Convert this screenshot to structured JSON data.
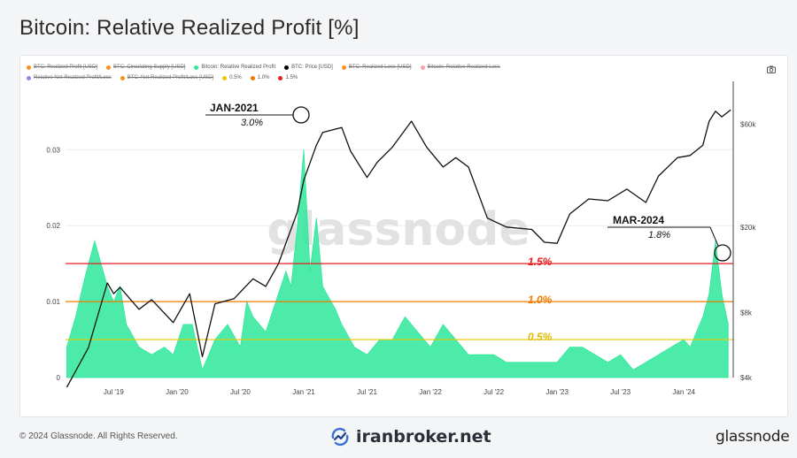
{
  "page": {
    "title": "Bitcoin: Relative Realized Profit [%]",
    "copyright": "© 2024 Glassnode. All Rights Reserved.",
    "center_brand": "iranbroker.net",
    "right_brand": "glassnode",
    "watermark": "glassnode",
    "camera_icon": "camera-icon"
  },
  "legend": {
    "row1": [
      {
        "label": "BTC: Realized Profit [USD]",
        "color": "#f7931a",
        "hidden": true
      },
      {
        "label": "BTC: Circulating Supply [USD]",
        "color": "#f7931a",
        "hidden": true
      },
      {
        "label": "Bitcoin: Relative Realized Profit",
        "color": "#2ee89a",
        "hidden": false
      },
      {
        "label": "BTC: Price [USD]",
        "color": "#000000",
        "hidden": false
      },
      {
        "label": "BTC: Realized Loss [USD]",
        "color": "#f7931a",
        "hidden": true
      },
      {
        "label": "Bitcoin: Relative Realized Loss",
        "color": "#f4a3b0",
        "hidden": true
      }
    ],
    "row2": [
      {
        "label": "Relative Net Realized Profit/Loss",
        "color": "#8c8cf0",
        "hidden": true
      },
      {
        "label": "BTC: Net Realized Profit/Loss [USD]",
        "color": "#f7931a",
        "hidden": true
      },
      {
        "label": "0.5%",
        "color": "#f0c800",
        "hidden": false
      },
      {
        "label": "1.0%",
        "color": "#f07a00",
        "hidden": false
      },
      {
        "label": "1.5%",
        "color": "#e61e1e",
        "hidden": false
      }
    ]
  },
  "annotations": {
    "jan2021_label": "JAN-2021",
    "jan2021_value": "3.0%",
    "mar2024_label": "MAR-2024",
    "mar2024_value": "1.8%",
    "line15": "1.5%",
    "line10": "1.0%",
    "line05": "0.5%"
  },
  "colors": {
    "area": "#2ee89a",
    "price": "#111111",
    "line15": "#e61e1e",
    "line10": "#f07a00",
    "line05": "#e8c800"
  },
  "chart_data": {
    "type": "area",
    "title": "Bitcoin: Relative Realized Profit [%]",
    "x_ticks": [
      "Jul '19",
      "Jan '20",
      "Jul '20",
      "Jan '21",
      "Jul '21",
      "Jan '22",
      "Jul '22",
      "Jan '23",
      "Jul '23",
      "Jan '24"
    ],
    "x_range": [
      2019.12,
      2024.39
    ],
    "y_left": {
      "ticks": [
        "0",
        "0.01",
        "0.02",
        "0.03"
      ],
      "tick_values": [
        0,
        0.01,
        0.02,
        0.03
      ],
      "range": [
        0,
        0.039
      ]
    },
    "y_right": {
      "ticks": [
        "$4k",
        "$8k",
        "$20k",
        "$60k"
      ],
      "tick_values": [
        4000,
        8000,
        20000,
        60000
      ],
      "scale": "log",
      "range": [
        4000,
        95000
      ]
    },
    "reference_lines": [
      {
        "name": "1.5%",
        "value": 0.015
      },
      {
        "name": "1.0%",
        "value": 0.01
      },
      {
        "name": "0.5%",
        "value": 0.005
      }
    ],
    "series": [
      {
        "name": "Bitcoin: Relative Realized Profit",
        "axis": "left",
        "x": [
          2019.13,
          2019.2,
          2019.27,
          2019.35,
          2019.4,
          2019.45,
          2019.5,
          2019.55,
          2019.6,
          2019.7,
          2019.8,
          2019.9,
          2019.97,
          2020.05,
          2020.12,
          2020.2,
          2020.3,
          2020.4,
          2020.5,
          2020.55,
          2020.6,
          2020.7,
          2020.8,
          2020.86,
          2020.9,
          2020.95,
          2021.0,
          2021.05,
          2021.1,
          2021.15,
          2021.25,
          2021.3,
          2021.4,
          2021.5,
          2021.6,
          2021.7,
          2021.8,
          2021.9,
          2022.0,
          2022.1,
          2022.2,
          2022.3,
          2022.4,
          2022.5,
          2022.6,
          2022.7,
          2022.8,
          2022.9,
          2023.0,
          2023.1,
          2023.2,
          2023.3,
          2023.4,
          2023.5,
          2023.6,
          2023.7,
          2023.8,
          2023.9,
          2024.0,
          2024.05,
          2024.1,
          2024.15,
          2024.2,
          2024.25,
          2024.3,
          2024.35
        ],
        "y": [
          0.004,
          0.008,
          0.013,
          0.018,
          0.015,
          0.012,
          0.01,
          0.012,
          0.007,
          0.004,
          0.003,
          0.004,
          0.003,
          0.007,
          0.007,
          0.001,
          0.005,
          0.007,
          0.004,
          0.01,
          0.008,
          0.006,
          0.011,
          0.014,
          0.012,
          0.02,
          0.03,
          0.014,
          0.021,
          0.012,
          0.009,
          0.007,
          0.004,
          0.003,
          0.005,
          0.005,
          0.008,
          0.006,
          0.004,
          0.007,
          0.005,
          0.003,
          0.003,
          0.003,
          0.002,
          0.002,
          0.002,
          0.002,
          0.002,
          0.004,
          0.004,
          0.003,
          0.002,
          0.003,
          0.001,
          0.002,
          0.003,
          0.004,
          0.005,
          0.004,
          0.006,
          0.008,
          0.011,
          0.018,
          0.011,
          0.007
        ]
      },
      {
        "name": "BTC: Price [USD]",
        "axis": "right",
        "x": [
          2019.13,
          2019.3,
          2019.45,
          2019.5,
          2019.55,
          2019.7,
          2019.8,
          2019.97,
          2020.1,
          2020.2,
          2020.3,
          2020.45,
          2020.6,
          2020.7,
          2020.8,
          2020.87,
          2020.95,
          2021.0,
          2021.1,
          2021.15,
          2021.3,
          2021.37,
          2021.5,
          2021.58,
          2021.7,
          2021.85,
          2021.97,
          2022.1,
          2022.2,
          2022.3,
          2022.45,
          2022.6,
          2022.8,
          2022.9,
          2023.0,
          2023.1,
          2023.25,
          2023.4,
          2023.55,
          2023.7,
          2023.8,
          2023.95,
          2024.05,
          2024.15,
          2024.2,
          2024.25,
          2024.3,
          2024.37
        ],
        "y": [
          3600,
          5500,
          11000,
          9800,
          10500,
          8300,
          9200,
          7200,
          9800,
          5000,
          8800,
          9300,
          11500,
          10600,
          13500,
          17500,
          23500,
          33000,
          48000,
          55000,
          58000,
          45000,
          34000,
          40000,
          47000,
          62000,
          47000,
          38000,
          42000,
          38000,
          22000,
          20000,
          19500,
          17000,
          16800,
          23000,
          27000,
          26500,
          30000,
          26000,
          34500,
          42000,
          43000,
          48000,
          62000,
          69000,
          65000,
          70000
        ]
      }
    ]
  }
}
